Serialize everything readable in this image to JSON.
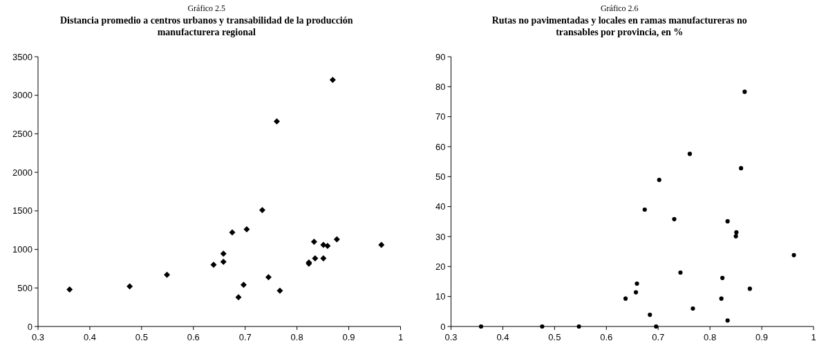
{
  "chart_data": [
    {
      "type": "scatter",
      "subtitle": "Gráfico 2.5",
      "title": "Distancia promedio a centros urbanos y transabilidad de la producción manufacturera regional",
      "marker": "diamond",
      "grid": false,
      "series": [
        {
          "color": "#000000",
          "x": [
            0.361,
            0.477,
            0.549,
            0.639,
            0.658,
            0.658,
            0.675,
            0.687,
            0.697,
            0.703,
            0.733,
            0.745,
            0.761,
            0.767,
            0.823,
            0.823,
            0.833,
            0.835,
            0.851,
            0.851,
            0.859,
            0.869,
            0.877,
            0.963
          ],
          "values": [
            480,
            520,
            670,
            800,
            840,
            945,
            1220,
            380,
            540,
            1260,
            1510,
            640,
            2660,
            465,
            815,
            830,
            1100,
            885,
            1060,
            885,
            1045,
            3200,
            1130,
            1060
          ]
        }
      ],
      "xlim": [
        0.3,
        1
      ],
      "xticks": [
        0.3,
        0.4,
        0.5,
        0.6,
        0.7,
        0.8,
        0.9,
        1
      ],
      "ylim": [
        0,
        3500
      ],
      "yticks": [
        0,
        500,
        1000,
        1500,
        2000,
        2500,
        3000,
        3500
      ]
    },
    {
      "type": "scatter",
      "subtitle": "Gráfico 2.6",
      "title": "Rutas no pavimentadas y locales en ramas manufactureras no transables por provincia, en %",
      "marker": "circle",
      "grid": false,
      "series": [
        {
          "color": "#000000",
          "x": [
            0.358,
            0.476,
            0.547,
            0.637,
            0.657,
            0.659,
            0.674,
            0.684,
            0.696,
            0.702,
            0.731,
            0.743,
            0.761,
            0.767,
            0.822,
            0.824,
            0.834,
            0.834,
            0.85,
            0.851,
            0.86,
            0.867,
            0.877,
            0.962
          ],
          "values": [
            0,
            0,
            0,
            9.3,
            11.4,
            14.3,
            39.0,
            3.9,
            0,
            48.9,
            35.8,
            18.0,
            57.6,
            6.0,
            9.3,
            16.2,
            35.1,
            2.0,
            30.1,
            31.4,
            52.8,
            78.3,
            12.6,
            23.8
          ]
        }
      ],
      "xlim": [
        0.3,
        1
      ],
      "xticks": [
        0.3,
        0.4,
        0.5,
        0.6,
        0.7,
        0.8,
        0.9,
        1
      ],
      "ylim": [
        0,
        90
      ],
      "yticks": [
        0,
        10,
        20,
        30,
        40,
        50,
        60,
        70,
        80,
        90
      ]
    }
  ]
}
